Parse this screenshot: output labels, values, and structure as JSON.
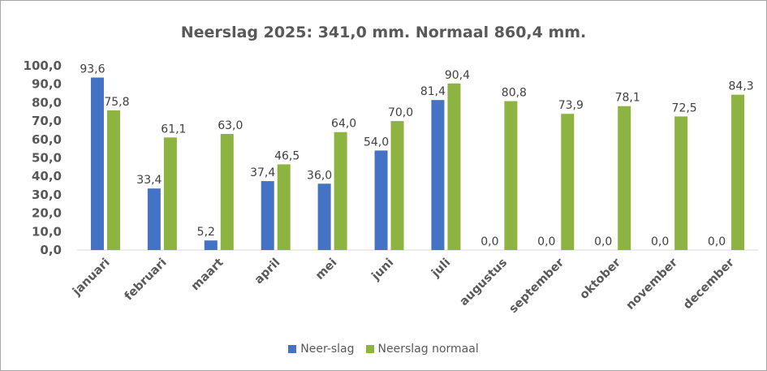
{
  "chart_data": {
    "type": "bar",
    "title": "Neerslag 2025: 341,0 mm. Normaal 860,4 mm.",
    "categories": [
      "januari",
      "februari",
      "maart",
      "april",
      "mei",
      "juni",
      "juli",
      "augustus",
      "september",
      "oktober",
      "november",
      "december"
    ],
    "series": [
      {
        "name": "Neer-slag",
        "color": "#4472c4",
        "values": [
          93.6,
          33.4,
          5.2,
          37.4,
          36.0,
          54.0,
          81.4,
          0.0,
          0.0,
          0.0,
          0.0,
          0.0
        ],
        "labels": [
          "93,6",
          "33,4",
          "5,2",
          "37,4",
          "36,0",
          "54,0",
          "81,4",
          "0,0",
          "0,0",
          "0,0",
          "0,0",
          "0,0"
        ]
      },
      {
        "name": "Neerslag normaal",
        "color": "#8db441",
        "values": [
          75.8,
          61.1,
          63.0,
          46.5,
          64.0,
          70.0,
          90.4,
          80.8,
          73.9,
          78.1,
          72.5,
          84.3
        ],
        "labels": [
          "75,8",
          "61,1",
          "63,0",
          "46,5",
          "64,0",
          "70,0",
          "90,4",
          "80,8",
          "73,9",
          "78,1",
          "72,5",
          "84,3"
        ]
      }
    ],
    "y_ticks": [
      "0,0",
      "10,0",
      "20,0",
      "30,0",
      "40,0",
      "50,0",
      "60,0",
      "70,0",
      "80,0",
      "90,0",
      "100,0"
    ],
    "ylim": [
      0,
      100
    ],
    "grid": false,
    "legend_position": "bottom"
  }
}
